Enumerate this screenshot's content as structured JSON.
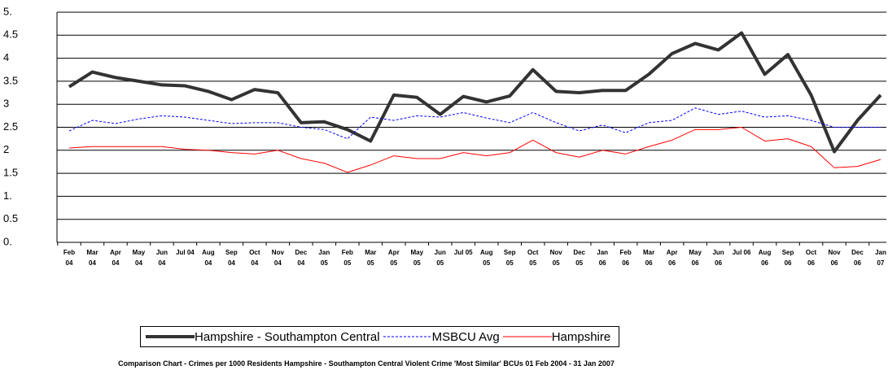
{
  "chart_data": {
    "type": "line",
    "title": "Comparison Chart  - Crimes per 1000 Residents Hampshire - Southampton Central Violent Crime 'Most Similar' BCUs 01 Feb 2004 - 31 Jan 2007",
    "categories": [
      "Feb 04",
      "Mar 04",
      "Apr 04",
      "May 04",
      "Jun 04",
      "Jul 04",
      "Aug 04",
      "Sep 04",
      "Oct 04",
      "Nov 04",
      "Dec 04",
      "Jan 05",
      "Feb 05",
      "Mar 05",
      "Apr 05",
      "May 05",
      "Jun 05",
      "Jul 05",
      "Aug 05",
      "Sep 05",
      "Oct 05",
      "Nov 05",
      "Dec 05",
      "Jan 06",
      "Feb 06",
      "Mar 06",
      "Apr 06",
      "May 06",
      "Jun 06",
      "Jul 06",
      "Aug 06",
      "Sep 06",
      "Oct 06",
      "Nov 06",
      "Dec 06",
      "Jan 07"
    ],
    "series": [
      {
        "name": "Hampshire - Southampton Central",
        "color": "#333333",
        "width": 4,
        "dash": false,
        "values": [
          3.38,
          3.7,
          3.58,
          3.5,
          3.42,
          3.4,
          3.28,
          3.1,
          3.32,
          3.25,
          2.6,
          2.62,
          2.45,
          2.2,
          3.2,
          3.15,
          2.78,
          3.17,
          3.05,
          3.18,
          3.75,
          3.28,
          3.25,
          3.3,
          3.3,
          3.65,
          4.1,
          4.32,
          4.18,
          4.55,
          3.65,
          4.08,
          3.2,
          1.97,
          2.65,
          3.2
        ]
      },
      {
        "name": "MSBCU Avg",
        "color": "#0000ff",
        "width": 1,
        "dash": true,
        "values": [
          2.42,
          2.65,
          2.58,
          2.68,
          2.75,
          2.72,
          2.65,
          2.58,
          2.6,
          2.6,
          2.5,
          2.45,
          2.25,
          2.72,
          2.65,
          2.75,
          2.72,
          2.82,
          2.7,
          2.6,
          2.82,
          2.6,
          2.42,
          2.55,
          2.38,
          2.6,
          2.65,
          2.92,
          2.78,
          2.85,
          2.72,
          2.75,
          2.65,
          2.5,
          2.5,
          2.5
        ]
      },
      {
        "name": "Hampshire",
        "color": "#ff0000",
        "width": 1,
        "dash": false,
        "values": [
          2.05,
          2.08,
          2.08,
          2.08,
          2.08,
          2.02,
          2.0,
          1.95,
          1.92,
          2.0,
          1.82,
          1.72,
          1.52,
          1.68,
          1.88,
          1.82,
          1.82,
          1.95,
          1.88,
          1.95,
          2.22,
          1.95,
          1.85,
          2.0,
          1.92,
          2.08,
          2.22,
          2.45,
          2.45,
          2.5,
          2.2,
          2.25,
          2.08,
          1.62,
          1.65,
          1.8
        ]
      }
    ],
    "ylim": [
      0,
      5
    ],
    "yticks": [
      {
        "value": 0,
        "label": "0."
      },
      0.5,
      {
        "value": 1,
        "label": "1."
      },
      1.5,
      2,
      2.5,
      3,
      3.5,
      4,
      4.5,
      {
        "value": 5,
        "label": "5."
      }
    ],
    "grid": true
  }
}
